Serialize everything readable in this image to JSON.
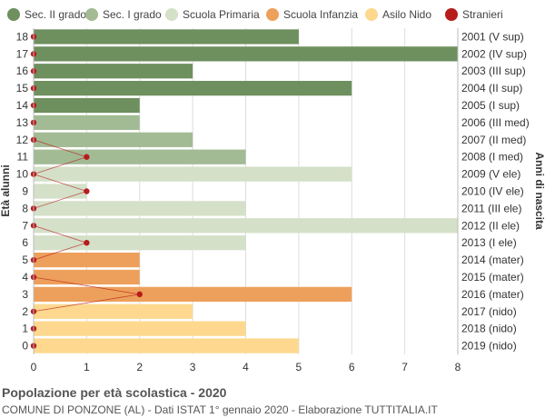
{
  "chart_data": {
    "type": "bar",
    "orientation": "horizontal",
    "title": "Popolazione per età scolastica - 2020",
    "subtitle": "COMUNE DI PONZONE (AL) - Dati ISTAT 1° gennaio 2020 - Elaborazione TUTTITALIA.IT",
    "ylabel_left": "Età alunni",
    "ylabel_right": "Anni di nascita",
    "xlim": [
      0,
      8
    ],
    "xticks": [
      0,
      1,
      2,
      3,
      4,
      5,
      6,
      7,
      8
    ],
    "grid": true,
    "legend_position": "top",
    "legend": [
      {
        "name": "Sec. II grado",
        "color": "#6e8f5e"
      },
      {
        "name": "Sec. I grado",
        "color": "#a2bb94"
      },
      {
        "name": "Scuola Primaria",
        "color": "#d4e0c8"
      },
      {
        "name": "Scuola Infanzia",
        "color": "#eda05b"
      },
      {
        "name": "Asilo Nido",
        "color": "#fdd88e"
      },
      {
        "name": "Stranieri",
        "color": "#b71c1c"
      }
    ],
    "rows": [
      {
        "age": "18",
        "year": "2001 (V sup)",
        "value": 5,
        "stranieri": 0,
        "group": 0
      },
      {
        "age": "17",
        "year": "2002 (IV sup)",
        "value": 8,
        "stranieri": 0,
        "group": 0
      },
      {
        "age": "16",
        "year": "2003 (III sup)",
        "value": 3,
        "stranieri": 0,
        "group": 0
      },
      {
        "age": "15",
        "year": "2004 (II sup)",
        "value": 6,
        "stranieri": 0,
        "group": 0
      },
      {
        "age": "14",
        "year": "2005 (I sup)",
        "value": 2,
        "stranieri": 0,
        "group": 0
      },
      {
        "age": "13",
        "year": "2006 (III med)",
        "value": 2,
        "stranieri": 0,
        "group": 1
      },
      {
        "age": "12",
        "year": "2007 (II med)",
        "value": 3,
        "stranieri": 0,
        "group": 1
      },
      {
        "age": "11",
        "year": "2008 (I med)",
        "value": 4,
        "stranieri": 1,
        "group": 1
      },
      {
        "age": "10",
        "year": "2009 (V ele)",
        "value": 6,
        "stranieri": 0,
        "group": 2
      },
      {
        "age": "9",
        "year": "2010 (IV ele)",
        "value": 1,
        "stranieri": 1,
        "group": 2
      },
      {
        "age": "8",
        "year": "2011 (III ele)",
        "value": 4,
        "stranieri": 0,
        "group": 2
      },
      {
        "age": "7",
        "year": "2012 (II ele)",
        "value": 8,
        "stranieri": 0,
        "group": 2
      },
      {
        "age": "6",
        "year": "2013 (I ele)",
        "value": 4,
        "stranieri": 1,
        "group": 2
      },
      {
        "age": "5",
        "year": "2014 (mater)",
        "value": 2,
        "stranieri": 0,
        "group": 3
      },
      {
        "age": "4",
        "year": "2015 (mater)",
        "value": 2,
        "stranieri": 0,
        "group": 3
      },
      {
        "age": "3",
        "year": "2016 (mater)",
        "value": 6,
        "stranieri": 2,
        "group": 3
      },
      {
        "age": "2",
        "year": "2017 (nido)",
        "value": 3,
        "stranieri": 0,
        "group": 4
      },
      {
        "age": "1",
        "year": "2018 (nido)",
        "value": 4,
        "stranieri": 0,
        "group": 4
      },
      {
        "age": "0",
        "year": "2019 (nido)",
        "value": 5,
        "stranieri": 0,
        "group": 4
      }
    ]
  }
}
